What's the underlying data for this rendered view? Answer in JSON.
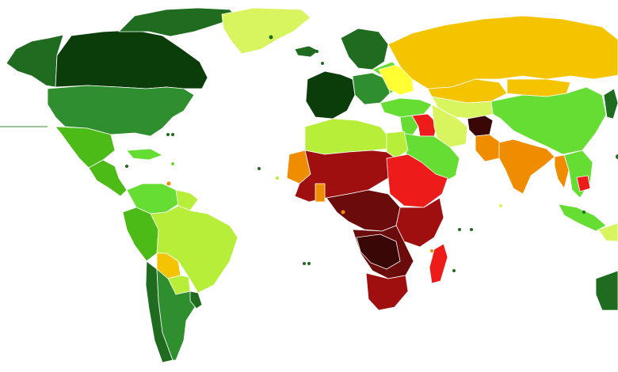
{
  "map": {
    "background": "#ffffff",
    "border_color": "#ffffff",
    "palette": {
      "darkest_green": "#0b3d0b",
      "dark_green": "#1f6b1f",
      "medium_green": "#2f8f2f",
      "green": "#4cbb17",
      "bright_green": "#66dd33",
      "light_green": "#b6ee3a",
      "yellow_green": "#d8f560",
      "yellow": "#ffff33",
      "gold": "#f5c400",
      "orange": "#f08c00",
      "red": "#ee1b1b",
      "dark_red": "#a00f0f",
      "maroon": "#6b0b0b",
      "darkest_maroon": "#3a0707"
    },
    "regions": [
      {
        "name": "alaska",
        "color": "#1f6b1f"
      },
      {
        "name": "canada",
        "color": "#0b3d0b"
      },
      {
        "name": "canadian-arctic",
        "color": "#1f6b1f"
      },
      {
        "name": "greenland",
        "color": "#d8f560"
      },
      {
        "name": "usa",
        "color": "#2f8f2f"
      },
      {
        "name": "mexico",
        "color": "#4cbb17"
      },
      {
        "name": "central-america",
        "color": "#4cbb17"
      },
      {
        "name": "caribbean",
        "color": "#66dd33"
      },
      {
        "name": "colombia-venezuela",
        "color": "#66dd33"
      },
      {
        "name": "guianas",
        "color": "#b6ee3a"
      },
      {
        "name": "ecuador-peru",
        "color": "#4cbb17"
      },
      {
        "name": "brazil",
        "color": "#b6ee3a"
      },
      {
        "name": "bolivia",
        "color": "#f5c400"
      },
      {
        "name": "paraguay",
        "color": "#b6ee3a"
      },
      {
        "name": "chile",
        "color": "#1f6b1f"
      },
      {
        "name": "argentina",
        "color": "#2f8f2f"
      },
      {
        "name": "uruguay",
        "color": "#1f6b1f"
      },
      {
        "name": "iceland",
        "color": "#1f6b1f"
      },
      {
        "name": "scandinavia",
        "color": "#1f6b1f"
      },
      {
        "name": "western-europe",
        "color": "#0b3d0b"
      },
      {
        "name": "central-europe",
        "color": "#2f8f2f"
      },
      {
        "name": "eastern-europe",
        "color": "#66dd33"
      },
      {
        "name": "ukraine-belarus",
        "color": "#ffff33"
      },
      {
        "name": "russia",
        "color": "#f5c400"
      },
      {
        "name": "kazakhstan",
        "color": "#f5c400"
      },
      {
        "name": "caucasus-turkey",
        "color": "#66dd33"
      },
      {
        "name": "central-asia",
        "color": "#d8f560"
      },
      {
        "name": "mongolia",
        "color": "#f5c400"
      },
      {
        "name": "china",
        "color": "#66dd33"
      },
      {
        "name": "korea-japan",
        "color": "#1f6b1f"
      },
      {
        "name": "middle-east",
        "color": "#66dd33"
      },
      {
        "name": "iraq",
        "color": "#ee1b1b"
      },
      {
        "name": "arabia",
        "color": "#66dd33"
      },
      {
        "name": "iran",
        "color": "#d8f560"
      },
      {
        "name": "pakistan",
        "color": "#f08c00"
      },
      {
        "name": "afghanistan",
        "color": "#3a0707"
      },
      {
        "name": "india",
        "color": "#f08c00"
      },
      {
        "name": "southeast-asia",
        "color": "#66dd33"
      },
      {
        "name": "myanmar",
        "color": "#f08c00"
      },
      {
        "name": "cambodia",
        "color": "#ee1b1b"
      },
      {
        "name": "indonesia",
        "color": "#66dd33"
      },
      {
        "name": "papua",
        "color": "#d8f560"
      },
      {
        "name": "australia",
        "color": "#1f6b1f"
      },
      {
        "name": "north-africa",
        "color": "#b6ee3a"
      },
      {
        "name": "egypt",
        "color": "#b6ee3a"
      },
      {
        "name": "west-africa-sahel",
        "color": "#a00f0f"
      },
      {
        "name": "mauritania",
        "color": "#f08c00"
      },
      {
        "name": "ghana",
        "color": "#f08c00"
      },
      {
        "name": "sudan-ethiopia",
        "color": "#ee1b1b"
      },
      {
        "name": "central-africa",
        "color": "#6b0b0b"
      },
      {
        "name": "east-africa",
        "color": "#a00f0f"
      },
      {
        "name": "southern-africa",
        "color": "#6b0b0b"
      },
      {
        "name": "zambia-region",
        "color": "#3a0707"
      },
      {
        "name": "south-africa",
        "color": "#a00f0f"
      },
      {
        "name": "madagascar",
        "color": "#ee1b1b"
      }
    ]
  }
}
